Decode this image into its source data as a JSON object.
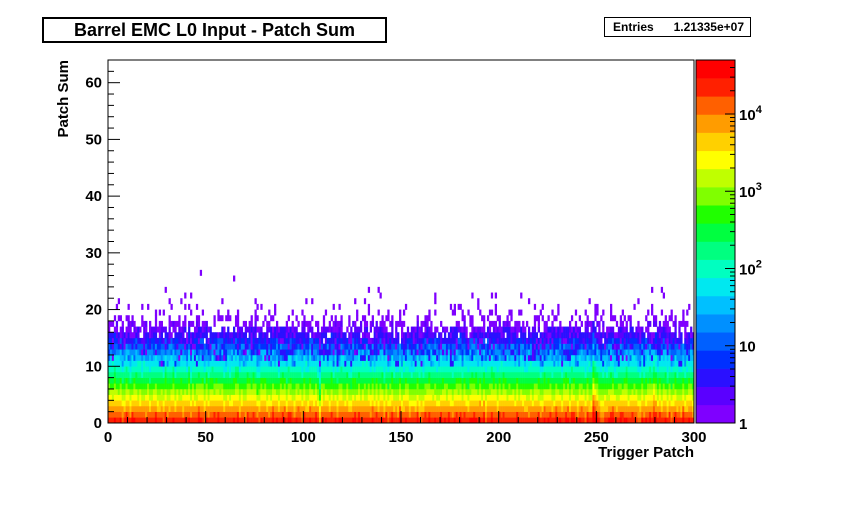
{
  "title": "Barrel EMC L0 Input - Patch Sum",
  "stats": {
    "label": "Entries",
    "value": "1.21335e+07"
  },
  "chart_data": {
    "type": "heatmap",
    "xlabel": "Trigger Patch",
    "ylabel": "Patch Sum",
    "xlim": [
      0,
      300
    ],
    "ylim": [
      0,
      64
    ],
    "x_ticks": [
      0,
      50,
      100,
      150,
      200,
      250,
      300
    ],
    "y_ticks": [
      0,
      10,
      20,
      30,
      40,
      50,
      60
    ],
    "z_scale": "log",
    "zlim": [
      1,
      50000
    ],
    "z_ticks": [
      {
        "value": 1,
        "label": "1"
      },
      {
        "value": 10,
        "label": "10"
      },
      {
        "value": 100,
        "label": "10",
        "exp": "2"
      },
      {
        "value": 1000,
        "label": "10",
        "exp": "3"
      },
      {
        "value": 10000,
        "label": "10",
        "exp": "4"
      }
    ],
    "palette": [
      "#7f00ff",
      "#5a00ff",
      "#2a10ff",
      "#0030ff",
      "#0060ff",
      "#0090ff",
      "#00c0ff",
      "#00e8f0",
      "#00ffc0",
      "#00ff80",
      "#00ff40",
      "#20ff00",
      "#80ff00",
      "#c0ff00",
      "#ffff00",
      "#ffd000",
      "#ff9c00",
      "#ff6000",
      "#ff2000",
      "#ff0000"
    ],
    "bins": {
      "x": 300,
      "y": 64
    },
    "description_of_distribution": "counts fall exponentially with patch sum; highest (~1e4) at sums 0-2, ~1e2 near 5-8, ~10 near 12-15, sparse singles above 20 up to 63; hot columns near patches 248 and 279"
  }
}
